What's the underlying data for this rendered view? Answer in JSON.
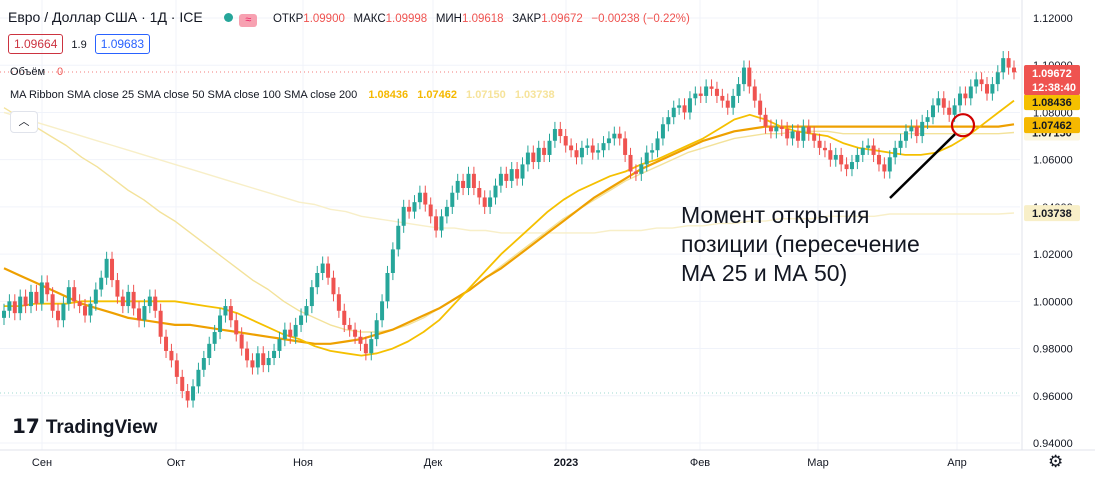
{
  "header": {
    "symbol": "Евро / Доллар США · 1Д · ICE",
    "market_icon": "≈",
    "open_label": "ОТКР",
    "open": "1.09900",
    "high_label": "МАКС",
    "high": "1.09998",
    "low_label": "МИН",
    "low": "1.09618",
    "close_label": "ЗАКР",
    "close": "1.09672",
    "change": "−0.00238 (−0.22%)"
  },
  "quote": {
    "sell": "1.09664",
    "spread": "1.9",
    "buy": "1.09683"
  },
  "volume": {
    "label": "Объём",
    "value": "0"
  },
  "indicator": {
    "label": "MA Ribbon SMA close 25 SMA close 50 SMA close 100 SMA close 200",
    "v25": "1.08436",
    "v50": "1.07462",
    "v100": "1.07150",
    "v200": "1.03738"
  },
  "collapse_icon": "chevron-up-icon",
  "annotation": {
    "lines": [
      "Момент открытия",
      "позиции (пересечение",
      "МА 25 и МА 50)"
    ]
  },
  "logo": {
    "text": "TradingView"
  },
  "colors": {
    "up": "#26a69a",
    "down": "#ef5350",
    "ma25": "#f5c000",
    "ma50": "#eea000",
    "ma100": "#f3e29a",
    "ma200": "#f8efc8",
    "price_label": "#ef5350",
    "circle": "#d00000"
  },
  "chart_data": {
    "type": "candlestick",
    "x": [
      "Сен",
      "Окт",
      "Ноя",
      "Дек",
      "2023",
      "Фев",
      "Мар",
      "Апр"
    ],
    "y_ticks": [
      "1.12000",
      "1.10000",
      "1.08000",
      "1.06000",
      "1.04000",
      "1.02000",
      "1.00000",
      "0.98000",
      "0.96000",
      "0.94000"
    ],
    "ylim": [
      0.935,
      1.125
    ],
    "last_price": "1.09672",
    "countdown": "12:38:40",
    "closes": [
      0.996,
      1.0,
      0.995,
      1.002,
      0.998,
      1.004,
      0.999,
      1.008,
      1.003,
      0.996,
      0.992,
      0.999,
      1.006,
      1.0,
      0.998,
      0.994,
      0.999,
      1.005,
      1.01,
      1.018,
      1.009,
      1.002,
      0.998,
      1.004,
      0.997,
      0.992,
      0.998,
      1.002,
      0.996,
      0.985,
      0.979,
      0.975,
      0.968,
      0.962,
      0.958,
      0.964,
      0.971,
      0.976,
      0.982,
      0.987,
      0.994,
      0.998,
      0.992,
      0.986,
      0.98,
      0.975,
      0.972,
      0.978,
      0.973,
      0.976,
      0.979,
      0.984,
      0.988,
      0.985,
      0.99,
      0.994,
      0.998,
      1.006,
      1.012,
      1.016,
      1.01,
      1.003,
      0.996,
      0.99,
      0.988,
      0.985,
      0.982,
      0.978,
      0.984,
      0.992,
      1.0,
      1.012,
      1.022,
      1.032,
      1.04,
      1.038,
      1.042,
      1.046,
      1.041,
      1.036,
      1.03,
      1.036,
      1.04,
      1.046,
      1.051,
      1.048,
      1.054,
      1.048,
      1.044,
      1.04,
      1.044,
      1.049,
      1.054,
      1.051,
      1.056,
      1.052,
      1.058,
      1.063,
      1.059,
      1.065,
      1.062,
      1.068,
      1.073,
      1.07,
      1.066,
      1.064,
      1.061,
      1.065,
      1.066,
      1.063,
      1.064,
      1.067,
      1.069,
      1.071,
      1.069,
      1.062,
      1.055,
      1.054,
      1.058,
      1.063,
      1.064,
      1.069,
      1.075,
      1.078,
      1.082,
      1.083,
      1.08,
      1.086,
      1.088,
      1.087,
      1.091,
      1.09,
      1.087,
      1.085,
      1.082,
      1.087,
      1.092,
      1.099,
      1.091,
      1.085,
      1.079,
      1.074,
      1.072,
      1.074,
      1.073,
      1.069,
      1.072,
      1.068,
      1.074,
      1.071,
      1.068,
      1.065,
      1.064,
      1.06,
      1.062,
      1.058,
      1.056,
      1.059,
      1.062,
      1.065,
      1.066,
      1.062,
      1.058,
      1.055,
      1.061,
      1.065,
      1.068,
      1.072,
      1.074,
      1.07,
      1.076,
      1.078,
      1.083,
      1.086,
      1.082,
      1.079,
      1.083,
      1.088,
      1.086,
      1.091,
      1.094,
      1.092,
      1.088,
      1.092,
      1.097,
      1.103,
      1.099,
      1.097
    ],
    "ma25": [
      0.998,
      0.998,
      0.999,
      0.999,
      0.999,
      1.0,
      1.0,
      1.0,
      1.0,
      1.0,
      1.0,
      1.0,
      0.999,
      0.998,
      0.997,
      0.995,
      0.992,
      0.989,
      0.986,
      0.984,
      0.981,
      0.979,
      0.978,
      0.977,
      0.978,
      0.98,
      0.983,
      0.987,
      0.992,
      0.999,
      1.006,
      1.013,
      1.02,
      1.026,
      1.032,
      1.038,
      1.043,
      1.047,
      1.05,
      1.053,
      1.055,
      1.058,
      1.06,
      1.063,
      1.066,
      1.069,
      1.073,
      1.077,
      1.079,
      1.077,
      1.074,
      1.072,
      1.071,
      1.07,
      1.067,
      1.065,
      1.064,
      1.063,
      1.062,
      1.062,
      1.063,
      1.066,
      1.07,
      1.075,
      1.08,
      1.085
    ],
    "ma50": [
      1.014,
      1.011,
      1.008,
      1.005,
      1.002,
      0.999,
      0.997,
      0.995,
      0.993,
      0.992,
      0.991,
      0.99,
      0.99,
      0.989,
      0.988,
      0.987,
      0.986,
      0.985,
      0.984,
      0.983,
      0.982,
      0.982,
      0.983,
      0.984,
      0.986,
      0.988,
      0.991,
      0.994,
      0.997,
      1.001,
      1.005,
      1.01,
      1.014,
      1.019,
      1.024,
      1.029,
      1.034,
      1.039,
      1.044,
      1.048,
      1.052,
      1.056,
      1.059,
      1.062,
      1.065,
      1.068,
      1.07,
      1.072,
      1.073,
      1.074,
      1.074,
      1.074,
      1.074,
      1.074,
      1.074,
      1.074,
      1.074,
      1.074,
      1.074,
      1.074,
      1.074,
      1.074,
      1.074,
      1.074,
      1.074,
      1.075
    ],
    "ma100": [
      1.082,
      1.078,
      1.074,
      1.07,
      1.066,
      1.061,
      1.057,
      1.052,
      1.047,
      1.043,
      1.038,
      1.034,
      1.029,
      1.024,
      1.019,
      1.014,
      1.009,
      1.005,
      1.0,
      0.996,
      0.993,
      0.99,
      0.988,
      0.987,
      0.987,
      0.988,
      0.99,
      0.993,
      0.997,
      1.001,
      1.005,
      1.01,
      1.015,
      1.02,
      1.025,
      1.03,
      1.035,
      1.039,
      1.043,
      1.047,
      1.051,
      1.054,
      1.057,
      1.06,
      1.063,
      1.065,
      1.067,
      1.069,
      1.07,
      1.071,
      1.071,
      1.072,
      1.072,
      1.072,
      1.071,
      1.071,
      1.071,
      1.071,
      1.071,
      1.071,
      1.071,
      1.071,
      1.071,
      1.071,
      1.071,
      1.0715
    ],
    "ma200": [
      1.08,
      1.078,
      1.076,
      1.074,
      1.072,
      1.07,
      1.068,
      1.066,
      1.064,
      1.062,
      1.06,
      1.058,
      1.056,
      1.054,
      1.052,
      1.05,
      1.048,
      1.046,
      1.044,
      1.042,
      1.041,
      1.039,
      1.038,
      1.036,
      1.035,
      1.034,
      1.033,
      1.032,
      1.031,
      1.031,
      1.03,
      1.03,
      1.029,
      1.029,
      1.029,
      1.029,
      1.029,
      1.029,
      1.029,
      1.03,
      1.03,
      1.03,
      1.031,
      1.031,
      1.032,
      1.032,
      1.033,
      1.033,
      1.034,
      1.034,
      1.035,
      1.035,
      1.035,
      1.036,
      1.036,
      1.036,
      1.036,
      1.037,
      1.037,
      1.037,
      1.037,
      1.037,
      1.037,
      1.037,
      1.037,
      1.0374
    ],
    "crossover": {
      "x": "Апр",
      "y": 1.0746
    }
  }
}
